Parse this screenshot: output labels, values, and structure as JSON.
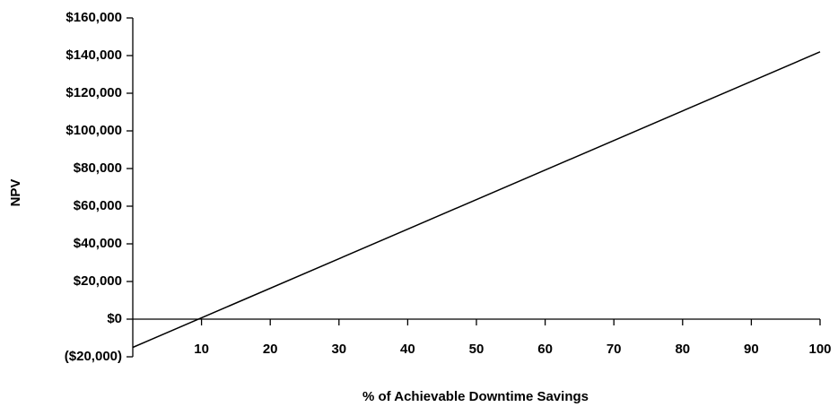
{
  "chart_data": {
    "type": "line",
    "x_label": "% of Achievable Downtime Savings",
    "y_label": "NPV",
    "x": [
      0,
      100
    ],
    "values": [
      -15000,
      142000
    ],
    "color": "#000000",
    "xlim": [
      0,
      100
    ],
    "xticks": [
      10,
      20,
      30,
      40,
      50,
      60,
      70,
      80,
      90,
      100
    ],
    "ylim": [
      -20000,
      160000
    ],
    "yticks": [
      {
        "value": -20000,
        "label": "($20,000)"
      },
      {
        "value": 0,
        "label": "$0"
      },
      {
        "value": 20000,
        "label": "$20,000"
      },
      {
        "value": 40000,
        "label": "$40,000"
      },
      {
        "value": 60000,
        "label": "$60,000"
      },
      {
        "value": 80000,
        "label": "$80,000"
      },
      {
        "value": 100000,
        "label": "$100,000"
      },
      {
        "value": 120000,
        "label": "$120,000"
      },
      {
        "value": 140000,
        "label": "$140,000"
      },
      {
        "value": 160000,
        "label": "$160,000"
      }
    ],
    "grid": false
  }
}
